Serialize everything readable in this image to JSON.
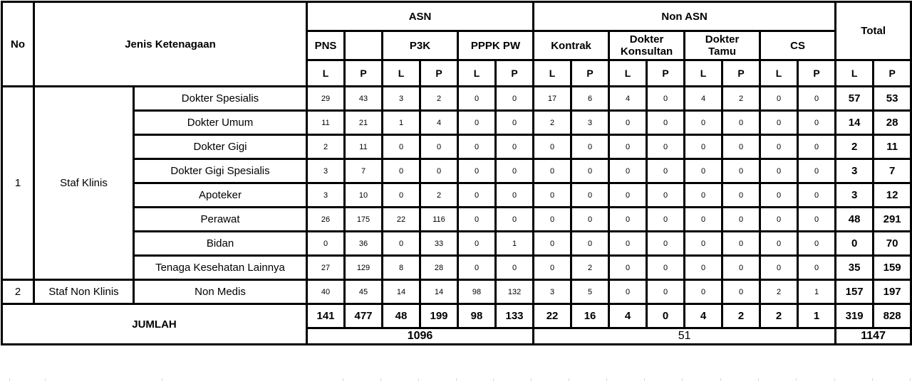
{
  "header": {
    "no": "No",
    "jenis_ketenagaan": "Jenis Ketenagaan",
    "asn": "ASN",
    "non_asn": "Non ASN",
    "total": "Total",
    "pns": "PNS",
    "pns_extra": "",
    "p3k": "P3K",
    "pppk_pw": "PPPK PW",
    "kontrak": "Kontrak",
    "dokter_konsultan": "Dokter Konsultan",
    "dokter_tamu": "Dokter Tamu",
    "cs": "CS",
    "l": "L",
    "p": "P"
  },
  "rows": [
    {
      "no": "1",
      "group": "Staf Klinis",
      "group_rowspan": 8,
      "name": "Dokter Spesialis",
      "values": [
        "29",
        "43",
        "3",
        "2",
        "0",
        "0",
        "17",
        "6",
        "4",
        "0",
        "4",
        "2",
        "0",
        "0",
        "57",
        "53"
      ]
    },
    {
      "name": "Dokter Umum",
      "values": [
        "11",
        "21",
        "1",
        "4",
        "0",
        "0",
        "2",
        "3",
        "0",
        "0",
        "0",
        "0",
        "0",
        "0",
        "14",
        "28"
      ]
    },
    {
      "name": "Dokter Gigi",
      "values": [
        "2",
        "11",
        "0",
        "0",
        "0",
        "0",
        "0",
        "0",
        "0",
        "0",
        "0",
        "0",
        "0",
        "0",
        "2",
        "11"
      ]
    },
    {
      "name": "Dokter Gigi Spesialis",
      "values": [
        "3",
        "7",
        "0",
        "0",
        "0",
        "0",
        "0",
        "0",
        "0",
        "0",
        "0",
        "0",
        "0",
        "0",
        "3",
        "7"
      ]
    },
    {
      "name": "Apoteker",
      "values": [
        "3",
        "10",
        "0",
        "2",
        "0",
        "0",
        "0",
        "0",
        "0",
        "0",
        "0",
        "0",
        "0",
        "0",
        "3",
        "12"
      ]
    },
    {
      "name": "Perawat",
      "values": [
        "26",
        "175",
        "22",
        "116",
        "0",
        "0",
        "0",
        "0",
        "0",
        "0",
        "0",
        "0",
        "0",
        "0",
        "48",
        "291"
      ]
    },
    {
      "name": "Bidan",
      "values": [
        "0",
        "36",
        "0",
        "33",
        "0",
        "1",
        "0",
        "0",
        "0",
        "0",
        "0",
        "0",
        "0",
        "0",
        "0",
        "70"
      ]
    },
    {
      "name": "Tenaga Kesehatan Lainnya",
      "values": [
        "27",
        "129",
        "8",
        "28",
        "0",
        "0",
        "0",
        "2",
        "0",
        "0",
        "0",
        "0",
        "0",
        "0",
        "35",
        "159"
      ]
    },
    {
      "no": "2",
      "group": "Staf Non Klinis",
      "group_rowspan": 1,
      "name": "Non Medis",
      "values": [
        "40",
        "45",
        "14",
        "14",
        "98",
        "132",
        "3",
        "5",
        "0",
        "0",
        "0",
        "0",
        "2",
        "1",
        "157",
        "197"
      ]
    }
  ],
  "jumlah": {
    "label": "JUMLAH",
    "values": [
      "141",
      "477",
      "48",
      "199",
      "98",
      "133",
      "22",
      "16",
      "4",
      "0",
      "4",
      "2",
      "2",
      "1",
      "319",
      "828"
    ]
  },
  "summary": {
    "asn_total": "1096",
    "non_asn_total": "51",
    "grand_total": "1147"
  },
  "colors": {
    "border": "#000000",
    "text": "#000000",
    "background": "#ffffff",
    "gridline": "#d9d9d9"
  }
}
